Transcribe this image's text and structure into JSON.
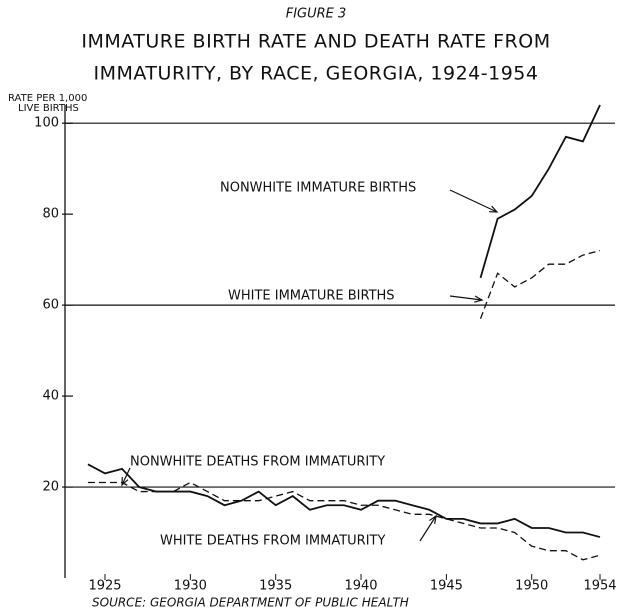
{
  "chart_data": {
    "type": "line",
    "figure_label": "FIGURE 3",
    "title": [
      "IMMATURE BIRTH RATE AND DEATH RATE FROM",
      "IMMATURITY, BY RACE, GEORGIA, 1924-1954"
    ],
    "y_label": [
      "RATE PER 1,000",
      "LIVE BIRTHS"
    ],
    "source": "SOURCE: GEORGIA DEPARTMENT OF PUBLIC HEALTH",
    "x": [
      1924,
      1925,
      1926,
      1927,
      1928,
      1929,
      1930,
      1931,
      1932,
      1933,
      1934,
      1935,
      1936,
      1937,
      1938,
      1939,
      1940,
      1941,
      1942,
      1943,
      1944,
      1945,
      1946,
      1947,
      1948,
      1949,
      1950,
      1951,
      1952,
      1953,
      1954
    ],
    "series": [
      {
        "name": "NONWHITE IMMATURE BIRTHS",
        "color": "#111",
        "dashed": false,
        "values": [
          null,
          null,
          null,
          null,
          null,
          null,
          null,
          null,
          null,
          null,
          null,
          null,
          null,
          null,
          null,
          null,
          null,
          null,
          null,
          null,
          null,
          null,
          null,
          66,
          79,
          81,
          84,
          90,
          97,
          96,
          104
        ]
      },
      {
        "name": "WHITE IMMATURE BIRTHS",
        "color": "#111",
        "dashed": true,
        "values": [
          null,
          null,
          null,
          null,
          null,
          null,
          null,
          null,
          null,
          null,
          null,
          null,
          null,
          null,
          null,
          null,
          null,
          null,
          null,
          null,
          null,
          null,
          null,
          57,
          67,
          64,
          66,
          69,
          69,
          71,
          72
        ]
      },
      {
        "name": "NONWHITE DEATHS FROM IMMATURITY",
        "color": "#111",
        "dashed": false,
        "values": [
          25,
          23,
          24,
          20,
          19,
          19,
          19,
          18,
          16,
          17,
          19,
          16,
          18,
          15,
          16,
          16,
          15,
          17,
          17,
          16,
          15,
          13,
          13,
          12,
          12,
          13,
          11,
          11,
          10,
          10,
          9
        ]
      },
      {
        "name": "WHITE DEATHS FROM IMMATURITY",
        "color": "#111",
        "dashed": true,
        "values": [
          21,
          21,
          21,
          19,
          19,
          19,
          21,
          19,
          17,
          17,
          17,
          18,
          19,
          17,
          17,
          17,
          16,
          16,
          15,
          14,
          14,
          13,
          12,
          11,
          11,
          10,
          7,
          6,
          6,
          4,
          5
        ]
      }
    ],
    "xlim": [
      1923,
      1955
    ],
    "xticks": [
      1925,
      1930,
      1935,
      1940,
      1945,
      1950,
      1954
    ],
    "ylim": [
      0,
      104
    ],
    "yticks": [
      20,
      40,
      60,
      80,
      100
    ],
    "grid_lines": [
      20,
      60,
      100
    ]
  }
}
